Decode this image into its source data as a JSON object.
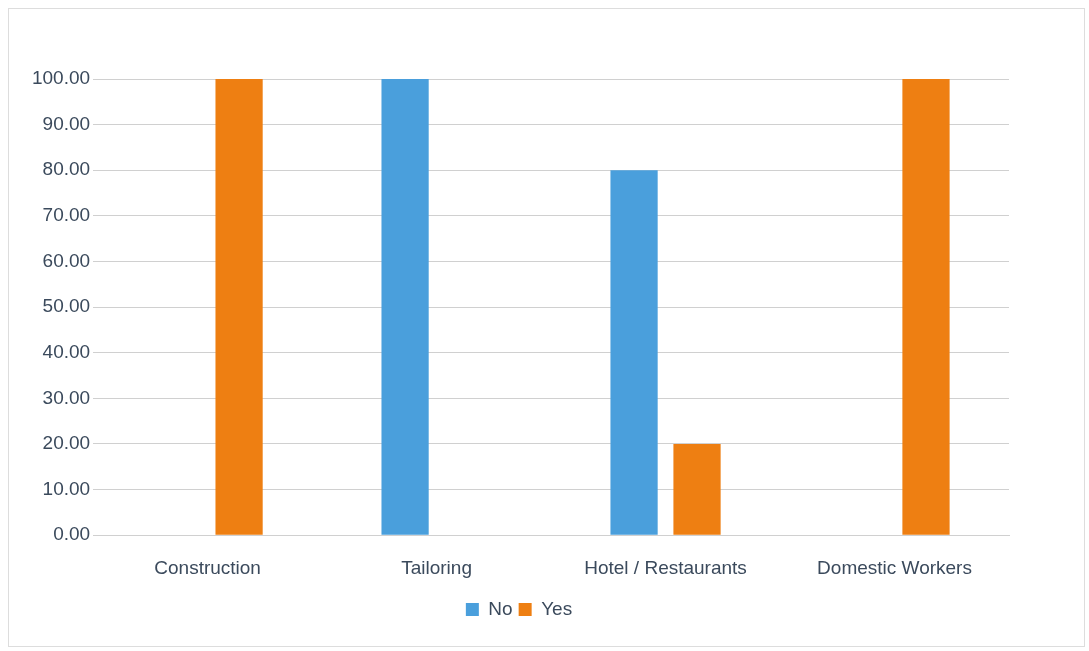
{
  "chart_data": {
    "type": "bar",
    "categories": [
      "Construction",
      "Tailoring",
      "Hotel / Restaurants",
      "Domestic Workers"
    ],
    "series": [
      {
        "name": "No",
        "color": "#4a9fdc",
        "values": [
          0,
          100,
          80,
          0
        ]
      },
      {
        "name": "Yes",
        "color": "#ee7f12",
        "values": [
          100,
          0,
          20,
          100
        ]
      }
    ],
    "ylim": [
      0,
      100
    ],
    "yticks": [
      {
        "value": 0,
        "label": "0.00"
      },
      {
        "value": 10,
        "label": "10.00"
      },
      {
        "value": 20,
        "label": "20.00"
      },
      {
        "value": 30,
        "label": "30.00"
      },
      {
        "value": 40,
        "label": "40.00"
      },
      {
        "value": 50,
        "label": "50.00"
      },
      {
        "value": 60,
        "label": "60.00"
      },
      {
        "value": 70,
        "label": "70.00"
      },
      {
        "value": 80,
        "label": "80.00"
      },
      {
        "value": 90,
        "label": "90.00"
      },
      {
        "value": 100,
        "label": "100.00"
      }
    ],
    "grid": "y",
    "legend": "bottom"
  }
}
